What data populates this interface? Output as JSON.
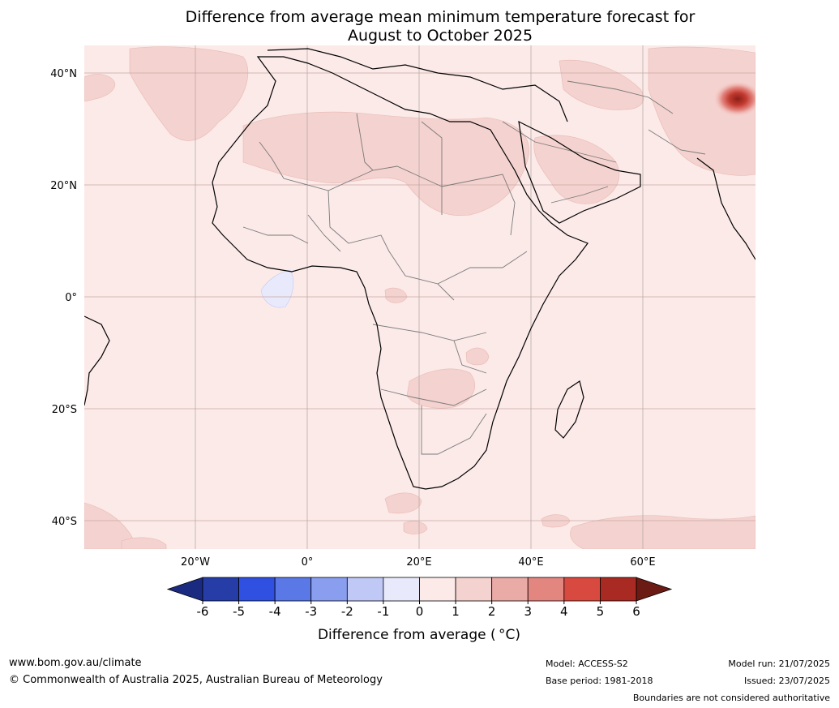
{
  "title": {
    "line1": "Difference from average mean minimum temperature forecast for",
    "line2": "August to October 2025"
  },
  "map": {
    "lat_ticks": [
      "40°N",
      "20°N",
      "0°",
      "20°S",
      "40°S"
    ],
    "lon_ticks": [
      "20°W",
      "0°",
      "20°E",
      "40°E",
      "60°E"
    ],
    "background_anomaly_color": "#fbeae8"
  },
  "colorbar": {
    "label": "Difference from average ( °C)",
    "ticks": [
      "-6",
      "-5",
      "-4",
      "-3",
      "-2",
      "-1",
      "0",
      "1",
      "2",
      "3",
      "4",
      "5",
      "6"
    ],
    "colors": [
      "#263da8",
      "#2f50e0",
      "#5a78e6",
      "#8a9ef0",
      "#c0c8f5",
      "#e8eafb",
      "#fbeae8",
      "#f4d2cf",
      "#eaaaa5",
      "#e48680",
      "#d84a40",
      "#a82a22"
    ],
    "under_color": "#1a2a80",
    "over_color": "#6b1a14"
  },
  "footer": {
    "website": "www.bom.gov.au/climate",
    "copyright": "© Commonwealth of Australia 2025, Australian Bureau of Meteorology",
    "model": "Model: ACCESS-S2",
    "base_period": "Base period: 1981-2018",
    "model_run": "Model run: 21/07/2025",
    "issued": "Issued: 23/07/2025",
    "disclaimer": "Boundaries are not considered authoritative"
  }
}
